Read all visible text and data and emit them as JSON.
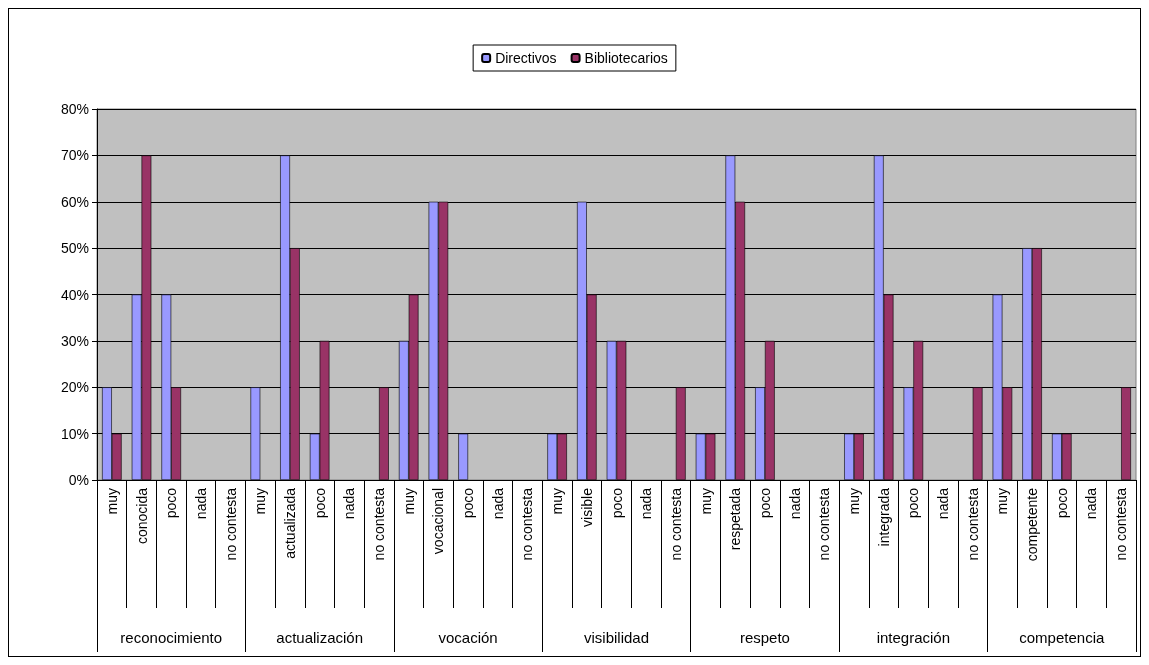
{
  "chart_data": {
    "type": "bar",
    "categories": [
      "muy",
      "conocida",
      "poco",
      "nada",
      "no contesta",
      "muy",
      "actualizada",
      "poco",
      "nada",
      "no contesta",
      "muy",
      "vocacional",
      "poco",
      "nada",
      "no contesta",
      "muy",
      "visible",
      "poco",
      "nada",
      "no contesta",
      "muy",
      "respetada",
      "poco",
      "nada",
      "no contesta",
      "muy",
      "integrada",
      "poco",
      "nada",
      "no contesta",
      "muy",
      "competente",
      "poco",
      "nada",
      "no contesta"
    ],
    "series": [
      {
        "name": "Directivos",
        "color": "#9999ff",
        "values": [
          20,
          40,
          40,
          0,
          0,
          20,
          70,
          10,
          0,
          0,
          30,
          60,
          10,
          0,
          0,
          10,
          60,
          30,
          0,
          0,
          10,
          70,
          20,
          0,
          0,
          10,
          70,
          20,
          0,
          0,
          40,
          50,
          10,
          0,
          0
        ]
      },
      {
        "name": "Bibliotecarios",
        "color": "#993366",
        "values": [
          10,
          70,
          20,
          0,
          0,
          0,
          50,
          30,
          0,
          20,
          40,
          60,
          0,
          0,
          0,
          10,
          40,
          30,
          0,
          20,
          10,
          60,
          30,
          0,
          0,
          10,
          40,
          30,
          0,
          20,
          20,
          50,
          10,
          0,
          20
        ]
      }
    ],
    "annotations": [
      "reconocimiento",
      "actualización",
      "vocación",
      "visibilidad",
      "respeto",
      "integración",
      "competencia"
    ],
    "ylim": [
      0,
      80
    ],
    "yticks": [
      {
        "value": 0,
        "label": "0%"
      },
      {
        "value": 10,
        "label": "10%"
      },
      {
        "value": 20,
        "label": "20%"
      },
      {
        "value": 30,
        "label": "30%"
      },
      {
        "value": 40,
        "label": "40%"
      },
      {
        "value": 50,
        "label": "50%"
      },
      {
        "value": 60,
        "label": "60%"
      },
      {
        "value": 70,
        "label": "70%"
      },
      {
        "value": 80,
        "label": "80%"
      }
    ],
    "grid": "y",
    "legend": "top"
  }
}
